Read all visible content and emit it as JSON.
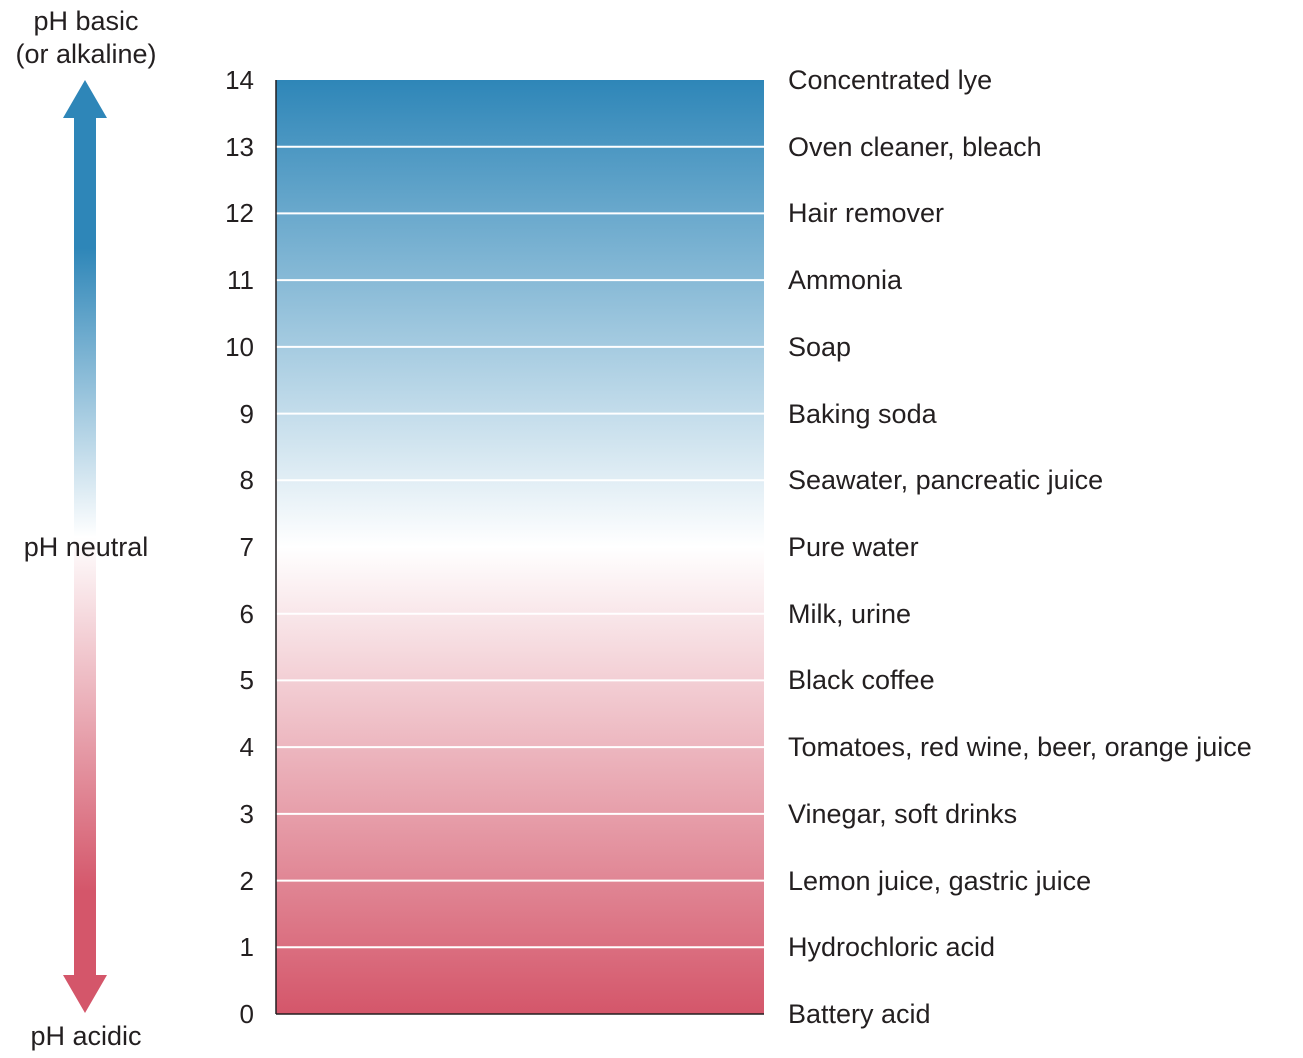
{
  "labels": {
    "basic_line1": "pH basic",
    "basic_line2": "(or alkaline)",
    "neutral": "pH neutral",
    "acidic": "pH acidic"
  },
  "colors": {
    "basic": "#2e86b8",
    "neutral": "#ffffff",
    "acidic": "#d4566a"
  },
  "scale": {
    "min": 0,
    "max": 14,
    "levels": [
      {
        "value": 14,
        "label": "14",
        "example": "Concentrated lye"
      },
      {
        "value": 13,
        "label": "13",
        "example": "Oven cleaner, bleach"
      },
      {
        "value": 12,
        "label": "12",
        "example": "Hair remover"
      },
      {
        "value": 11,
        "label": "11",
        "example": "Ammonia"
      },
      {
        "value": 10,
        "label": "10",
        "example": "Soap"
      },
      {
        "value": 9,
        "label": "9",
        "example": "Baking soda"
      },
      {
        "value": 8,
        "label": "8",
        "example": "Seawater, pancreatic juice"
      },
      {
        "value": 7,
        "label": "7",
        "example": "Pure water"
      },
      {
        "value": 6,
        "label": "6",
        "example": "Milk, urine"
      },
      {
        "value": 5,
        "label": "5",
        "example": "Black coffee"
      },
      {
        "value": 4,
        "label": "4",
        "example": "Tomatoes, red wine, beer, orange juice"
      },
      {
        "value": 3,
        "label": "3",
        "example": "Vinegar, soft drinks"
      },
      {
        "value": 2,
        "label": "2",
        "example": "Lemon juice, gastric juice"
      },
      {
        "value": 1,
        "label": "1",
        "example": "Hydrochloric acid"
      },
      {
        "value": 0,
        "label": "0",
        "example": "Battery acid"
      }
    ]
  }
}
